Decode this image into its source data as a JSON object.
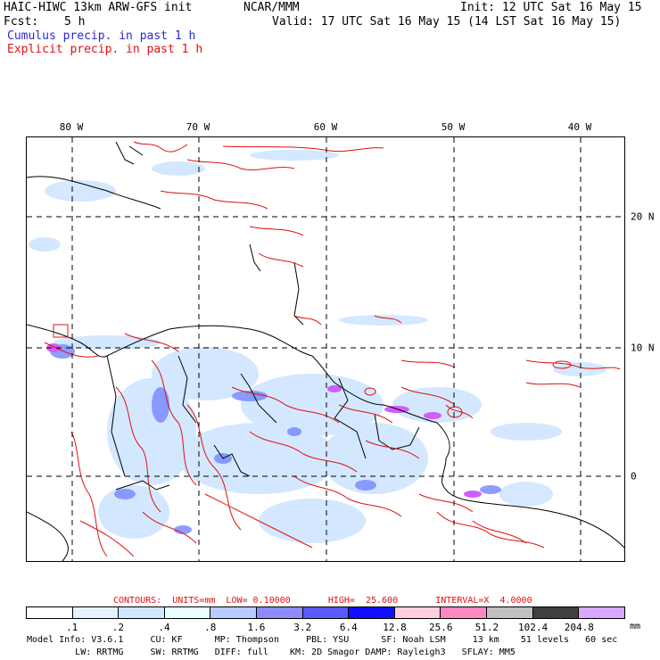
{
  "header": {
    "model_title": "HAIC-HIWC 13km ARW-GFS init",
    "org": "NCAR/MMM",
    "init": "Init: 12 UTC Sat 16 May 15",
    "fcst_label": "Fcst:",
    "fcst_value": "5 h",
    "valid": "Valid: 17 UTC Sat 16 May 15 (14 LST Sat 16 May 15)",
    "field1": "Cumulus precip. in past 1 h",
    "field2": "Explicit precip. in past 1 h"
  },
  "map": {
    "lon_labels": [
      "80 W",
      "70 W",
      "60 W",
      "50 W",
      "40 W"
    ],
    "lat_labels": [
      "20 N",
      "10 N",
      "0"
    ],
    "colors": {
      "coast": "#000000",
      "grid": "#000000",
      "explicit": "#e01010",
      "cumulus_light": "#cfe6ff",
      "cumulus_mid": "#8fa8ff",
      "cumulus_strong": "#4a4ae8",
      "magenta": "#d25cff"
    }
  },
  "contours": {
    "text": "CONTOURS:  UNITS=mm  LOW= 0.10000       HIGH=  25.600       INTERVAL=X  4.0000"
  },
  "legend": {
    "unit": "mm",
    "labels": [
      ".1",
      ".2",
      ".4",
      ".8",
      "1.6",
      "3.2",
      "6.4",
      "12.8",
      "25.6",
      "51.2",
      "102.4",
      "204.8"
    ],
    "colors": [
      "#ffffff",
      "#e6f2ff",
      "#d0e6ff",
      "#eaffff",
      "#b8ccff",
      "#8c8cff",
      "#5a5aff",
      "#1010ff",
      "#ffd0dc",
      "#ff88c0",
      "#c0c0c0",
      "#404040",
      "#d8a8ff"
    ]
  },
  "footer": {
    "line1": "Model Info: V3.6.1     CU: KF      MP: Thompson     PBL: YSU      SF: Noah LSM     13 km    51 levels   60 sec",
    "line2": "         LW: RRTMG     SW: RRTMG   DIFF: full    KM: 2D Smagor DAMP: Rayleigh3   SFLAY: MM5"
  }
}
